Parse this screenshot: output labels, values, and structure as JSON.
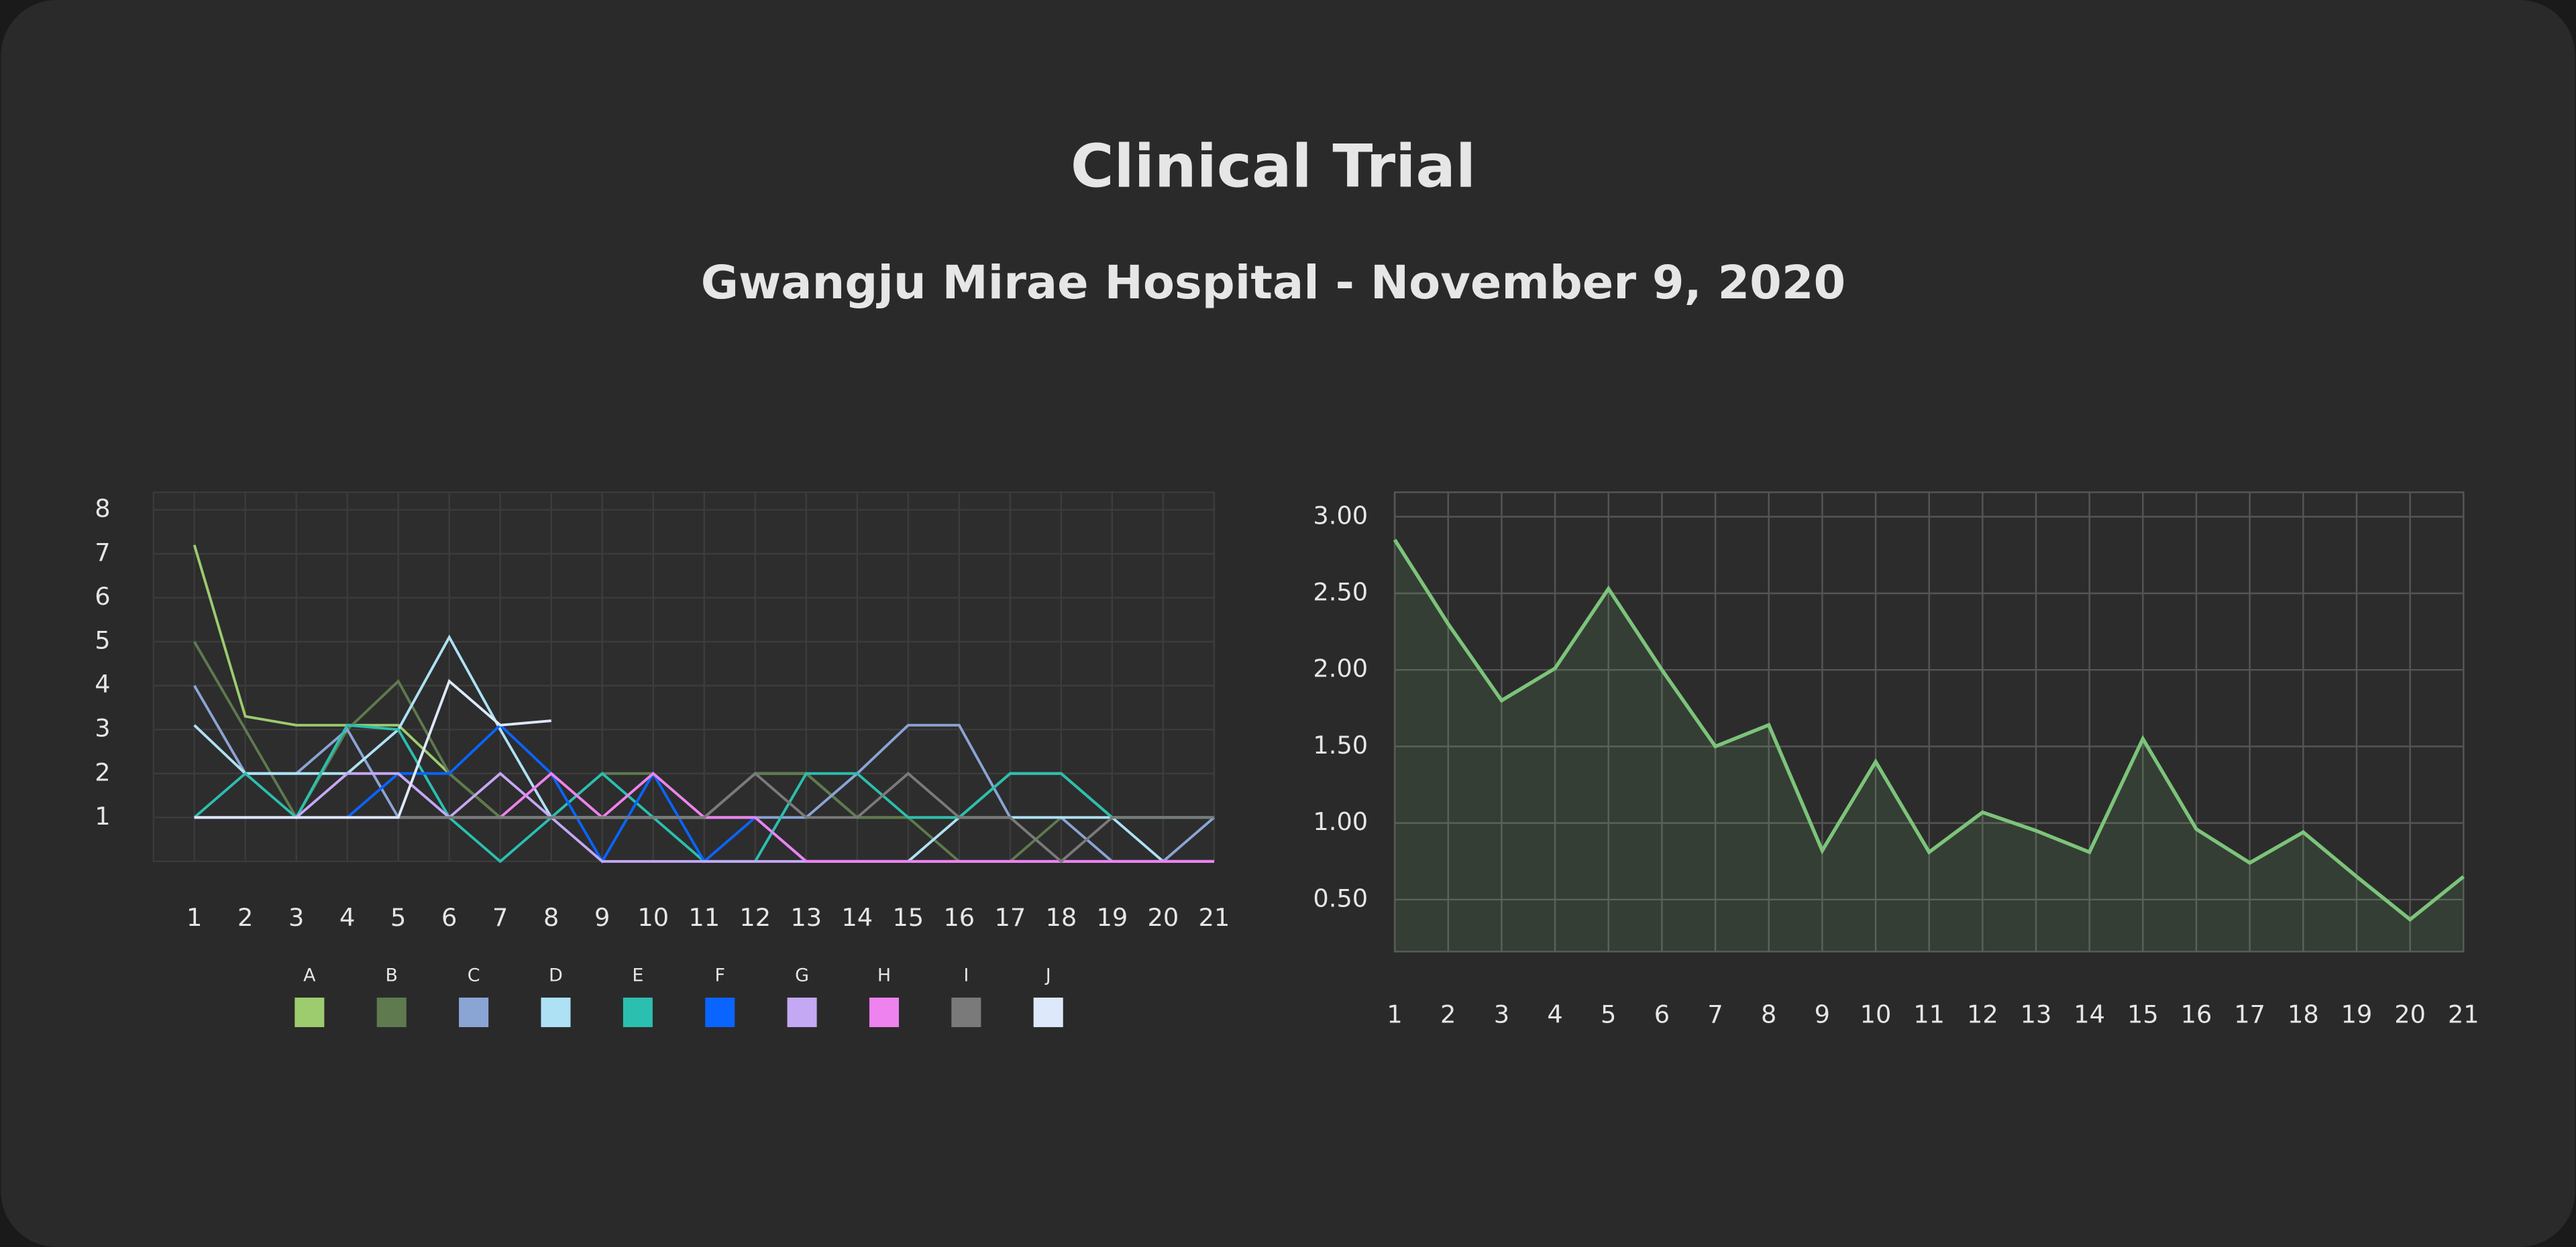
{
  "title": "Clinical Trial",
  "subtitle": "Gwangju Mirae Hospital - November 9, 2020",
  "chart_data": [
    {
      "type": "line",
      "legend": "bottom",
      "grid": true,
      "x": [
        1,
        2,
        3,
        4,
        5,
        6,
        7,
        8,
        9,
        10,
        11,
        12,
        13,
        14,
        15,
        16,
        17,
        18,
        19,
        20,
        21
      ],
      "xlim": [
        0.2,
        21
      ],
      "ylim": [
        0,
        8.4
      ],
      "yticks": [
        1,
        2,
        3,
        4,
        5,
        6,
        7,
        8
      ],
      "series": [
        {
          "name": "A",
          "color": "#9ccc6e",
          "values": [
            7.2,
            3.3,
            3.1,
            3.1,
            3.1,
            2,
            1,
            1,
            1,
            1,
            1,
            2,
            2,
            1,
            1,
            1,
            2,
            2,
            1,
            1,
            1
          ]
        },
        {
          "name": "B",
          "color": "#5e7a4e",
          "values": [
            5,
            3,
            1,
            3,
            4.1,
            2,
            1,
            1,
            2,
            2,
            1,
            2,
            2,
            1,
            1,
            0,
            0,
            1,
            1,
            1,
            1
          ]
        },
        {
          "name": "C",
          "color": "#8aa4d4",
          "values": [
            4,
            2,
            2,
            3,
            1,
            1,
            1,
            1,
            1,
            1,
            1,
            1,
            1,
            2,
            3.1,
            3.1,
            1,
            1,
            0,
            0,
            1
          ]
        },
        {
          "name": "D",
          "color": "#aee1f4",
          "values": [
            3.1,
            2,
            2,
            2,
            3,
            5.1,
            3,
            1,
            1,
            1,
            1,
            1,
            0,
            0,
            0,
            1,
            1,
            1,
            1,
            0,
            0
          ]
        },
        {
          "name": "E",
          "color": "#2bbfaf",
          "values": [
            1,
            2,
            1,
            3.1,
            3,
            1,
            0,
            1,
            2,
            1,
            0,
            0,
            2,
            2,
            1,
            1,
            2,
            2,
            1,
            1,
            1
          ]
        },
        {
          "name": "F",
          "color": "#0a64ff",
          "values": [
            1,
            1,
            1,
            1,
            2,
            2,
            3.1,
            2,
            0,
            2,
            0,
            1,
            0,
            0,
            0,
            0,
            0,
            0,
            0,
            0,
            0
          ]
        },
        {
          "name": "G",
          "color": "#c4a8f4",
          "values": [
            1,
            1,
            1,
            2,
            2,
            1,
            2,
            1,
            0,
            0,
            0,
            0,
            0,
            0,
            0,
            0,
            0,
            0,
            0,
            0,
            0
          ]
        },
        {
          "name": "H",
          "color": "#ee82ee",
          "values": [
            1,
            1,
            1,
            1,
            1,
            1,
            1,
            2,
            1,
            2,
            1,
            1,
            0,
            0,
            0,
            0,
            0,
            0,
            0,
            0,
            0
          ]
        },
        {
          "name": "I",
          "color": "#7a7a7a",
          "values": [
            1,
            1,
            1,
            1,
            1,
            1,
            1,
            1,
            1,
            1,
            1,
            2,
            1,
            1,
            2,
            1,
            1,
            0,
            1,
            1,
            1
          ]
        },
        {
          "name": "J",
          "color": "#dde8fa",
          "values": [
            1,
            1,
            1,
            1,
            1,
            4.1,
            3.1,
            3.2,
            null,
            null,
            null,
            null,
            null,
            null,
            null,
            null,
            null,
            null,
            null,
            null,
            null
          ]
        }
      ]
    },
    {
      "type": "line",
      "area": true,
      "grid": true,
      "x": [
        1,
        2,
        3,
        4,
        5,
        6,
        7,
        8,
        9,
        10,
        11,
        12,
        13,
        14,
        15,
        16,
        17,
        18,
        19,
        20,
        21
      ],
      "xlim": [
        1,
        21
      ],
      "ylim": [
        0.16,
        3.16
      ],
      "yticks": [
        {
          "value": 0.5,
          "label": "0.50"
        },
        {
          "value": 1,
          "label": "1.00"
        },
        {
          "value": 1.5,
          "label": "1.50"
        },
        {
          "value": 2,
          "label": "2.00"
        },
        {
          "value": 2.5,
          "label": "2.50"
        },
        {
          "value": 3,
          "label": "3.00"
        }
      ],
      "series": [
        {
          "color": "#7cc47a",
          "values": [
            2.85,
            2.3,
            1.8,
            2.01,
            2.53,
            2.0,
            1.5,
            1.64,
            0.82,
            1.4,
            0.81,
            1.07,
            0.95,
            0.81,
            1.55,
            0.96,
            0.74,
            0.94,
            0.65,
            0.37,
            0.65
          ]
        }
      ]
    }
  ]
}
